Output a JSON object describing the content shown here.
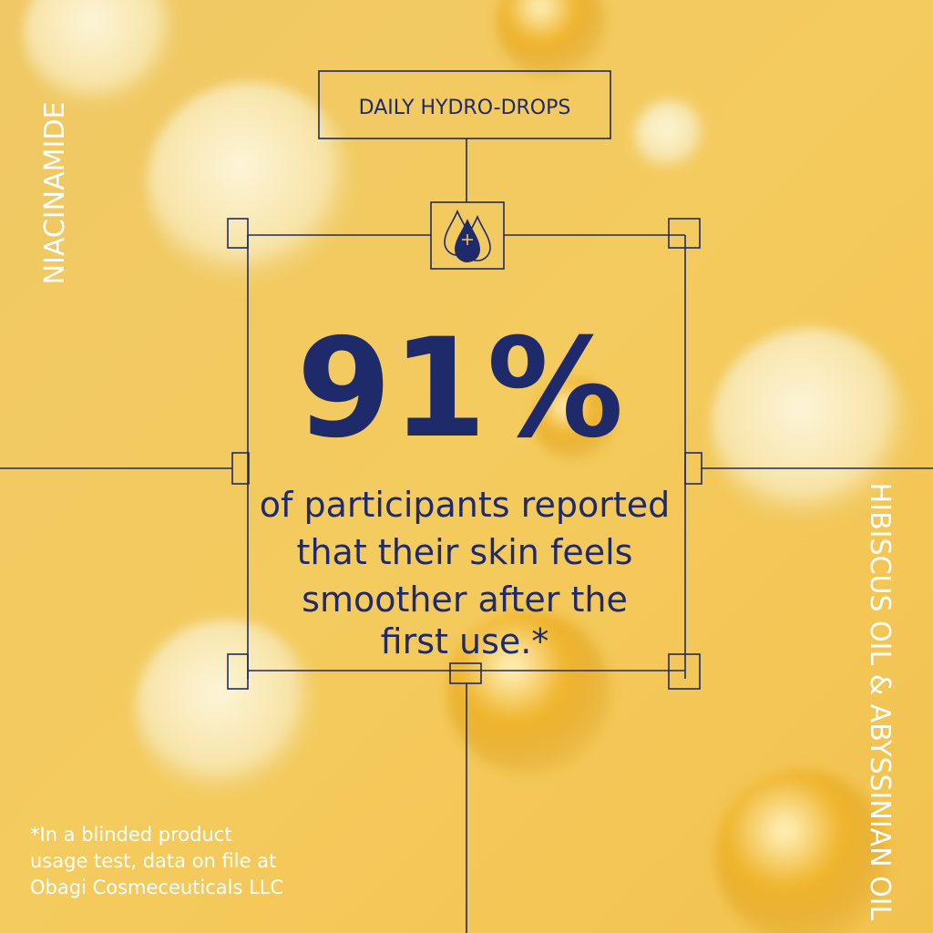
{
  "header": {
    "label": "DAILY HYDRO-DROPS"
  },
  "stat": {
    "value": "91%",
    "description": [
      "of participants reported",
      "that their skin feels",
      "smoother after the",
      "first use.*"
    ]
  },
  "ingredients": {
    "left": "NIACINAMIDE",
    "right": "HIBISCUS OIL & ABYSSINIAN OIL"
  },
  "footnote": [
    "*In a blinded product",
    "usage test, data on file at",
    "Obagi Cosmeceuticals LLC"
  ]
}
